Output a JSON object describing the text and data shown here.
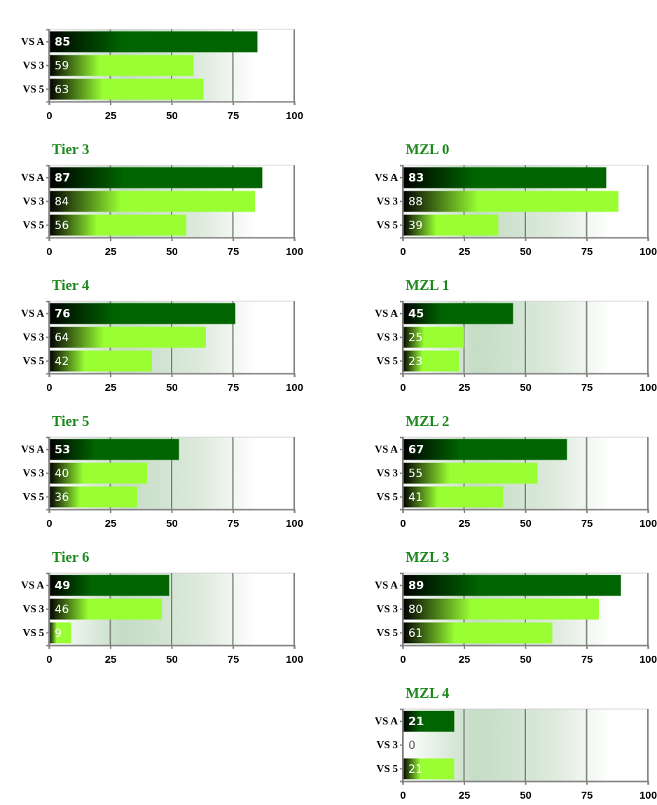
{
  "chart_data": [
    {
      "type": "bar",
      "orientation": "horizontal",
      "categories": [
        "VS A",
        "VS 3",
        "VS 5"
      ],
      "values": [
        85,
        59,
        63
      ],
      "colors": [
        "#006400",
        "#99ff33",
        "#99ff33"
      ],
      "xlim": [
        0,
        100
      ],
      "xticks": [
        0,
        25,
        50,
        75,
        100
      ],
      "grid": "x",
      "data_labels": true
    },
    {
      "type": "bar",
      "orientation": "horizontal",
      "title": "Tier 3",
      "categories": [
        "VS A",
        "VS 3",
        "VS 5"
      ],
      "values": [
        87,
        84,
        56
      ],
      "colors": [
        "#006400",
        "#99ff33",
        "#99ff33"
      ],
      "xlim": [
        0,
        100
      ],
      "xticks": [
        0,
        25,
        50,
        75,
        100
      ],
      "grid": "x",
      "data_labels": true
    },
    {
      "type": "bar",
      "orientation": "horizontal",
      "title": "MZL 0",
      "categories": [
        "VS A",
        "VS 3",
        "VS 5"
      ],
      "values": [
        83,
        88,
        39
      ],
      "colors": [
        "#006400",
        "#99ff33",
        "#99ff33"
      ],
      "xlim": [
        0,
        100
      ],
      "xticks": [
        0,
        25,
        50,
        75,
        100
      ],
      "grid": "x",
      "data_labels": true
    },
    {
      "type": "bar",
      "orientation": "horizontal",
      "title": "Tier 4",
      "categories": [
        "VS A",
        "VS 3",
        "VS 5"
      ],
      "values": [
        76,
        64,
        42
      ],
      "colors": [
        "#006400",
        "#99ff33",
        "#99ff33"
      ],
      "xlim": [
        0,
        100
      ],
      "xticks": [
        0,
        25,
        50,
        75,
        100
      ],
      "grid": "x",
      "data_labels": true
    },
    {
      "type": "bar",
      "orientation": "horizontal",
      "title": "MZL 1",
      "categories": [
        "VS A",
        "VS 3",
        "VS 5"
      ],
      "values": [
        45,
        25,
        23
      ],
      "colors": [
        "#006400",
        "#99ff33",
        "#99ff33"
      ],
      "xlim": [
        0,
        100
      ],
      "xticks": [
        0,
        25,
        50,
        75,
        100
      ],
      "grid": "x",
      "data_labels": true
    },
    {
      "type": "bar",
      "orientation": "horizontal",
      "title": "Tier 5",
      "categories": [
        "VS A",
        "VS 3",
        "VS 5"
      ],
      "values": [
        53,
        40,
        36
      ],
      "colors": [
        "#006400",
        "#99ff33",
        "#99ff33"
      ],
      "xlim": [
        0,
        100
      ],
      "xticks": [
        0,
        25,
        50,
        75,
        100
      ],
      "grid": "x",
      "data_labels": true
    },
    {
      "type": "bar",
      "orientation": "horizontal",
      "title": "MZL 2",
      "categories": [
        "VS A",
        "VS 3",
        "VS 5"
      ],
      "values": [
        67,
        55,
        41
      ],
      "colors": [
        "#006400",
        "#99ff33",
        "#99ff33"
      ],
      "xlim": [
        0,
        100
      ],
      "xticks": [
        0,
        25,
        50,
        75,
        100
      ],
      "grid": "x",
      "data_labels": true
    },
    {
      "type": "bar",
      "orientation": "horizontal",
      "title": "Tier 6",
      "categories": [
        "VS A",
        "VS 3",
        "VS 5"
      ],
      "values": [
        49,
        46,
        9
      ],
      "colors": [
        "#006400",
        "#99ff33",
        "#99ff33"
      ],
      "xlim": [
        0,
        100
      ],
      "xticks": [
        0,
        25,
        50,
        75,
        100
      ],
      "grid": "x",
      "data_labels": true
    },
    {
      "type": "bar",
      "orientation": "horizontal",
      "title": "MZL 3",
      "categories": [
        "VS A",
        "VS 3",
        "VS 5"
      ],
      "values": [
        89,
        80,
        61
      ],
      "colors": [
        "#006400",
        "#99ff33",
        "#99ff33"
      ],
      "xlim": [
        0,
        100
      ],
      "xticks": [
        0,
        25,
        50,
        75,
        100
      ],
      "grid": "x",
      "data_labels": true
    },
    {
      "type": "bar",
      "orientation": "horizontal",
      "title": "MZL 4",
      "categories": [
        "VS A",
        "VS 3",
        "VS 5"
      ],
      "values": [
        21,
        0,
        21
      ],
      "colors": [
        "#006400",
        "#99ff33",
        "#99ff33"
      ],
      "xlim": [
        0,
        100
      ],
      "xticks": [
        0,
        25,
        50,
        75,
        100
      ],
      "grid": "x",
      "data_labels": true
    }
  ]
}
